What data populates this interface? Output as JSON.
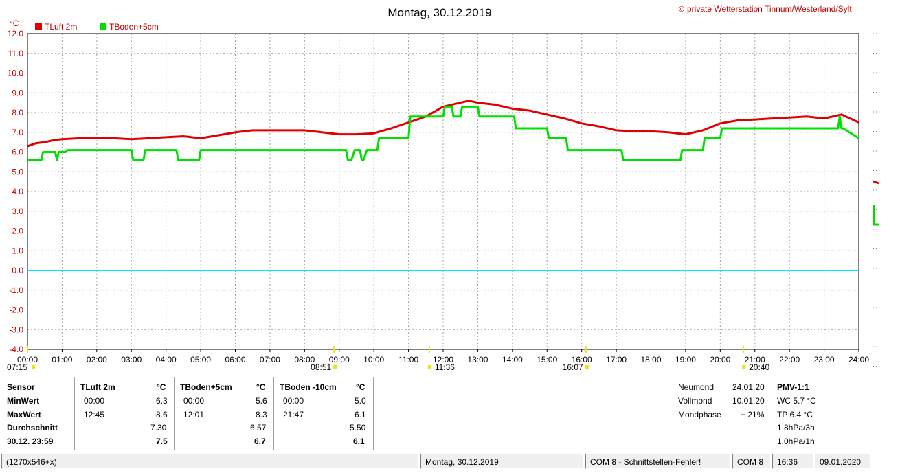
{
  "chart_data": {
    "type": "line",
    "title": "Montag, 30.12.2019",
    "copyright": "private Wetterstation Tinnum/Westerland/Sylt",
    "yunit": "°C",
    "ylim": [
      -4.0,
      12.0
    ],
    "yticks": [
      "12.0",
      "11.0",
      "10.0",
      "9.0",
      "8.0",
      "7.0",
      "6.0",
      "5.0",
      "4.0",
      "3.0",
      "2.0",
      "1.0",
      "0.0",
      "-1.0",
      "-2.0",
      "-3.0",
      "-4.0"
    ],
    "xlim": [
      0,
      24
    ],
    "xticks": [
      "00:00",
      "01:00",
      "02:00",
      "03:00",
      "04:00",
      "05:00",
      "06:00",
      "07:00",
      "08:00",
      "09:00",
      "10:00",
      "11:00",
      "12:00",
      "13:00",
      "14:00",
      "15:00",
      "16:00",
      "17:00",
      "18:00",
      "19:00",
      "20:00",
      "21:00",
      "22:00",
      "23:00",
      "24:00"
    ],
    "legend": [
      {
        "name": "TLuft 2m",
        "color": "#e00000"
      },
      {
        "name": "TBoden+5cm",
        "color": "#00e000"
      }
    ],
    "zero_line_color": "#00e8f0",
    "series": [
      {
        "name": "TLuft 2m",
        "color": "#e00000",
        "x": [
          0,
          0.25,
          0.5,
          0.75,
          1,
          1.5,
          2,
          2.5,
          3,
          3.5,
          4,
          4.5,
          5,
          5.5,
          6,
          6.5,
          7,
          7.5,
          8,
          8.5,
          9,
          9.5,
          10,
          10.5,
          11,
          11.5,
          12,
          12.5,
          12.75,
          13,
          13.5,
          14,
          14.5,
          15,
          15.5,
          16,
          16.5,
          17,
          17.5,
          18,
          18.5,
          19,
          19.5,
          20,
          20.5,
          21,
          21.5,
          22,
          22.5,
          23,
          23.5,
          24
        ],
        "y": [
          6.3,
          6.45,
          6.5,
          6.6,
          6.65,
          6.7,
          6.7,
          6.7,
          6.65,
          6.7,
          6.75,
          6.8,
          6.7,
          6.85,
          7.0,
          7.1,
          7.1,
          7.1,
          7.1,
          7.0,
          6.9,
          6.9,
          6.95,
          7.2,
          7.5,
          7.8,
          8.3,
          8.5,
          8.6,
          8.5,
          8.4,
          8.2,
          8.1,
          7.9,
          7.7,
          7.45,
          7.3,
          7.1,
          7.05,
          7.05,
          7.0,
          6.9,
          7.1,
          7.45,
          7.6,
          7.65,
          7.7,
          7.75,
          7.8,
          7.7,
          7.9,
          7.5
        ]
      },
      {
        "name": "TBoden+5cm",
        "color": "#00e000",
        "x": [
          0,
          0.4,
          0.45,
          0.8,
          0.85,
          0.9,
          1.1,
          1.15,
          3.0,
          3.05,
          3.35,
          3.4,
          4.3,
          4.35,
          4.95,
          5.0,
          9.2,
          9.25,
          9.35,
          9.45,
          9.6,
          9.65,
          9.7,
          9.8,
          10.1,
          10.15,
          11.0,
          11.05,
          12.0,
          12.05,
          12.25,
          12.3,
          12.5,
          12.55,
          13.0,
          13.05,
          14.05,
          14.1,
          15.0,
          15.05,
          15.55,
          15.6,
          15.75,
          15.8,
          16.05,
          16.1,
          16.9,
          16.95,
          17.15,
          17.2,
          18.85,
          18.9,
          19.1,
          19.15,
          19.5,
          19.55,
          20.0,
          20.05,
          23.4,
          23.45,
          23.5,
          23.55,
          24.0
        ],
        "y": [
          5.6,
          5.6,
          6.0,
          6.0,
          5.6,
          6.0,
          6.0,
          6.1,
          6.1,
          5.6,
          5.6,
          6.1,
          6.1,
          5.6,
          5.6,
          6.1,
          6.1,
          5.6,
          5.6,
          6.1,
          6.1,
          5.6,
          5.6,
          6.1,
          6.1,
          6.7,
          6.7,
          7.8,
          7.8,
          8.3,
          8.3,
          7.8,
          7.8,
          8.3,
          8.3,
          7.8,
          7.8,
          7.2,
          7.2,
          6.7,
          6.7,
          6.1,
          6.1,
          6.1,
          6.1,
          6.1,
          6.1,
          6.1,
          6.1,
          5.6,
          5.6,
          6.1,
          6.1,
          6.1,
          6.1,
          6.7,
          6.7,
          7.2,
          7.2,
          7.8,
          7.2,
          7.2,
          6.7
        ]
      }
    ],
    "sun_markers": [
      {
        "label": "07:15",
        "x": 0.0
      },
      {
        "label": "08:51",
        "x": 8.85
      },
      {
        "label": "11:36",
        "x": 11.6
      },
      {
        "label": "16:07",
        "x": 16.12
      },
      {
        "label": "20:40",
        "x": 20.67
      }
    ]
  },
  "stats": {
    "headers": {
      "sensor": "Sensor",
      "tluft": "TLuft 2m",
      "tboden5": "TBoden+5cm",
      "tboden10": "TBoden -10cm",
      "unit": "°C"
    },
    "row_labels": {
      "min": "MinWert",
      "max": "MaxWert",
      "avg": "Durchschnitt",
      "last": "30.12. 23:59"
    },
    "tluft": {
      "min_time": "00:00",
      "min": "6.3",
      "max_time": "12:45",
      "max": "8.6",
      "avg": "7.30",
      "last": "7.5"
    },
    "tboden5": {
      "min_time": "00:00",
      "min": "5.6",
      "max_time": "12:01",
      "max": "8.3",
      "avg": "6.57",
      "last": "6.7"
    },
    "tboden10": {
      "min_time": "00:00",
      "min": "5.0",
      "max_time": "21:47",
      "max": "6.1",
      "avg": "5.50",
      "last": "6.1"
    }
  },
  "moon": {
    "neumond_label": "Neumond",
    "neumond": "24.01.20",
    "vollmond_label": "Vollmond",
    "vollmond": "10.01.20",
    "phase_label": "Mondphase",
    "phase": "+ 21%"
  },
  "pmv": {
    "title": "PMV-1:1",
    "wc": "WC 5.7 °C",
    "tp": "TP 6.4 °C",
    "p3": "1.8hPa/3h",
    "p1": "1.0hPa/1h"
  },
  "status": {
    "size": "(1270x546+x)",
    "date": "Montag, 30.12.2019",
    "com_error": "COM 8 - Schnittstellen-Fehler!",
    "com": "COM 8",
    "time": "16:36",
    "today": "09.01.2020"
  }
}
